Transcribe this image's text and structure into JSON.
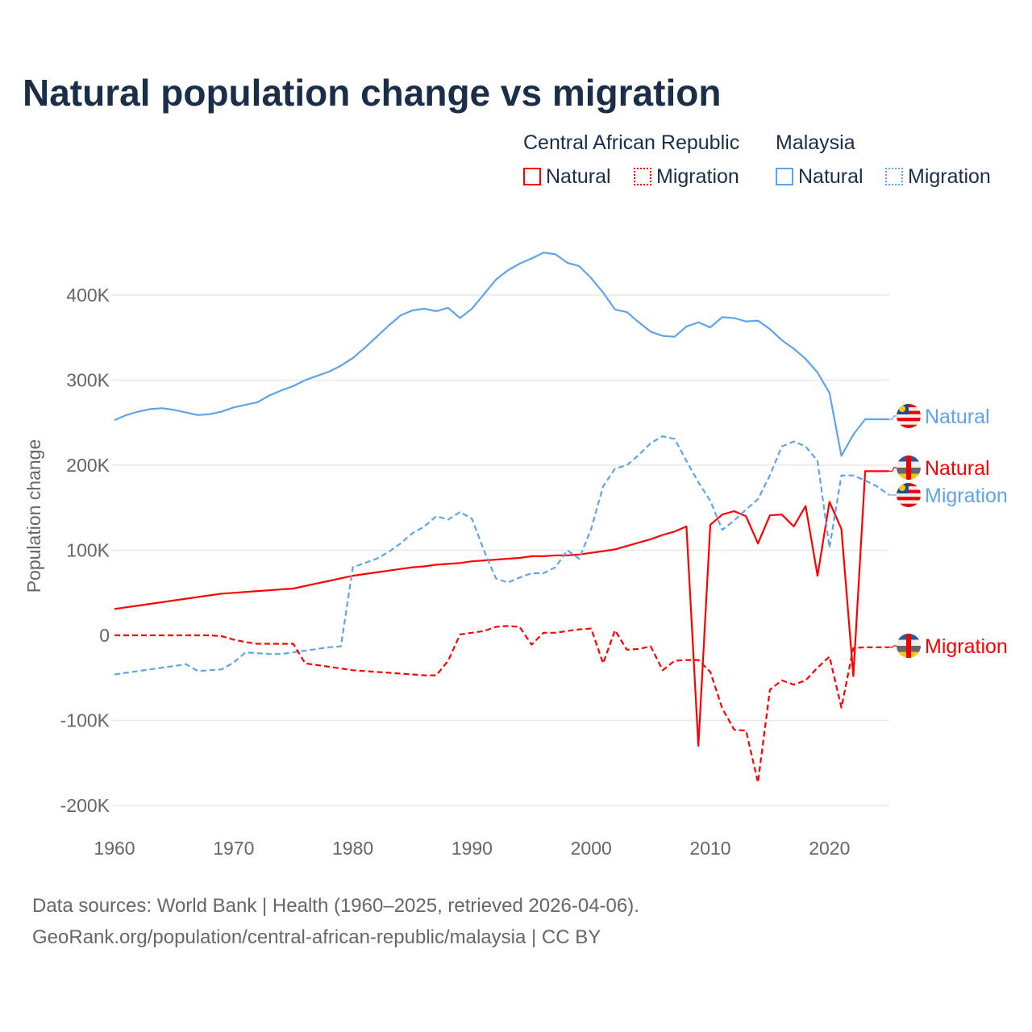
{
  "chart_data": {
    "type": "line",
    "title": "Natural population change vs migration",
    "ylabel": "Population change",
    "xlabel": "",
    "xlim": [
      1960,
      2025
    ],
    "ylim": [
      -200000,
      450000
    ],
    "x_ticks": [
      "1960",
      "1970",
      "1980",
      "1990",
      "2000",
      "2010",
      "2020"
    ],
    "y_ticks": [
      {
        "v": 400,
        "l": "400K"
      },
      {
        "v": 300,
        "l": "300K"
      },
      {
        "v": 200,
        "l": "200K"
      },
      {
        "v": 100,
        "l": "100K"
      },
      {
        "v": 0,
        "l": "0"
      },
      {
        "v": -100,
        "l": "-100K"
      },
      {
        "v": -200,
        "l": "-200K"
      }
    ],
    "units": "thousands",
    "legend": {
      "groups": [
        {
          "country": "Central African Republic",
          "items": [
            "Natural",
            "Migration"
          ]
        },
        {
          "country": "Malaysia",
          "items": [
            "Natural",
            "Migration"
          ]
        }
      ],
      "placement": "top-right"
    },
    "series": [
      {
        "name": "Malaysia Natural",
        "country": "Malaysia",
        "kind": "Natural",
        "color": "#5fa4e8",
        "dash": false,
        "label": "Natural",
        "values": [
          253,
          259,
          263,
          266,
          267,
          265,
          262,
          259,
          260,
          263,
          268,
          271,
          274,
          282,
          288,
          293,
          300,
          305,
          310,
          317,
          326,
          338,
          351,
          364,
          376,
          382,
          384,
          381,
          385,
          373,
          384,
          401,
          418,
          429,
          437,
          443,
          450,
          448,
          438,
          434,
          420,
          403,
          383,
          380,
          368,
          357,
          352,
          351,
          363,
          368,
          362,
          374,
          373,
          369,
          370,
          360,
          347,
          337,
          325,
          309,
          285,
          211,
          236,
          254,
          254,
          254
        ]
      },
      {
        "name": "Central African Republic Natural",
        "country": "Central African Republic",
        "kind": "Natural",
        "color": "#ff0000",
        "dash": false,
        "label": "Natural",
        "values": [
          31,
          33,
          35,
          37,
          39,
          41,
          43,
          45,
          47,
          49,
          50,
          51,
          52,
          53,
          54,
          55,
          58,
          61,
          64,
          67,
          70,
          72,
          74,
          76,
          78,
          80,
          81,
          83,
          84,
          85,
          87,
          88,
          89,
          90,
          91,
          93,
          93,
          94,
          94,
          95,
          97,
          99,
          101,
          105,
          109,
          113,
          118,
          122,
          128,
          -130,
          130,
          142,
          146,
          140,
          108,
          141,
          142,
          128,
          152,
          70,
          157,
          125,
          -48,
          193,
          193,
          193
        ]
      },
      {
        "name": "Malaysia Migration",
        "country": "Malaysia",
        "kind": "Migration",
        "color": "#5fa4e8",
        "dash": true,
        "label": "Migration",
        "values": [
          -46,
          -44,
          -42,
          -40,
          -38,
          -36,
          -34,
          -42,
          -41,
          -40,
          -32,
          -20,
          -21,
          -22,
          -22,
          -20,
          -18,
          -16,
          -14,
          -13,
          80,
          85,
          90,
          98,
          108,
          120,
          128,
          140,
          136,
          145,
          137,
          100,
          67,
          62,
          68,
          73,
          73,
          80,
          100,
          90,
          125,
          175,
          196,
          200,
          212,
          226,
          234,
          231,
          205,
          180,
          158,
          124,
          135,
          148,
          160,
          188,
          222,
          228,
          222,
          205,
          103,
          188,
          188,
          182,
          175,
          165
        ]
      },
      {
        "name": "Central African Republic Migration",
        "country": "Central African Republic",
        "kind": "Migration",
        "color": "#ff0000",
        "dash": true,
        "label": "Migration",
        "values": [
          0,
          0,
          0,
          0,
          0,
          0,
          0,
          0,
          0,
          -1,
          -5,
          -8,
          -10,
          -10,
          -10,
          -10,
          -33,
          -35,
          -37,
          -39,
          -41,
          -42,
          -43,
          -44,
          -45,
          -46,
          -47,
          -47,
          -30,
          1,
          3,
          5,
          10,
          11,
          10,
          -11,
          3,
          3,
          5,
          7,
          8,
          -33,
          6,
          -17,
          -16,
          -13,
          -41,
          -30,
          -29,
          -29,
          -43,
          -86,
          -111,
          -112,
          -173,
          -64,
          -53,
          -58,
          -53,
          -38,
          -25,
          -85,
          -15,
          -14,
          -14,
          -14
        ]
      }
    ]
  },
  "footer": {
    "line1": "Data sources: World Bank | Health (1960–2025, retrieved 2026-04-06).",
    "line2": "GeoRank.org/population/central-african-republic/malaysia | CC BY"
  }
}
